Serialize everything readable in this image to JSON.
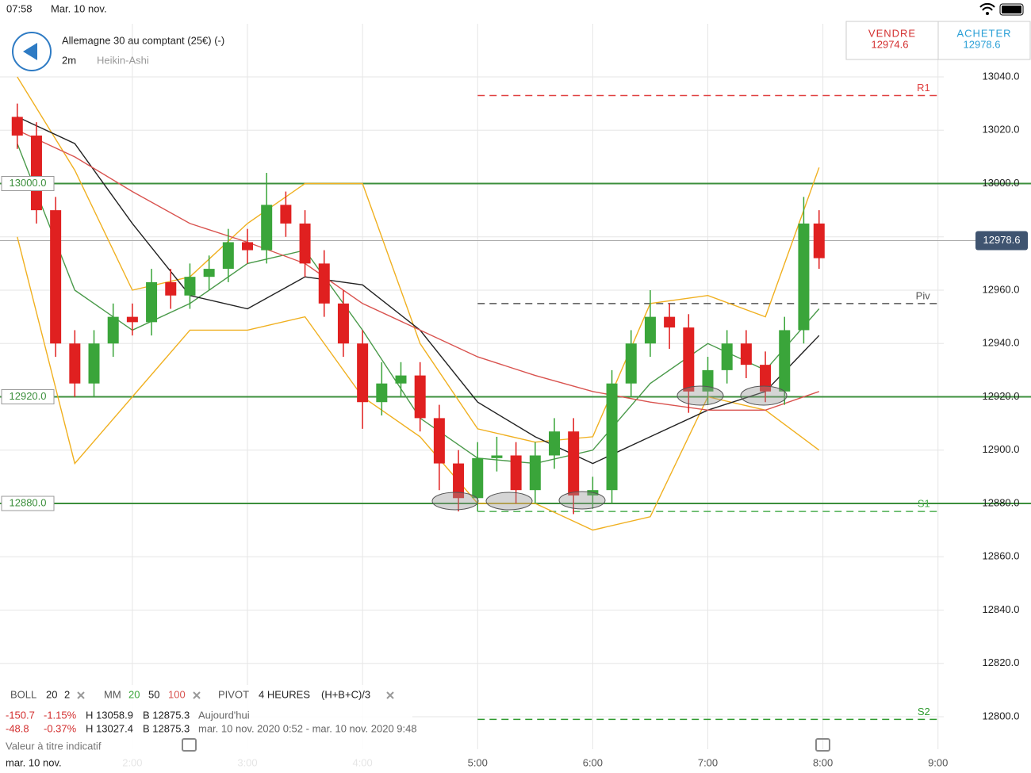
{
  "status": {
    "time": "07:58",
    "date": "Mar. 10 nov."
  },
  "header": {
    "instrument": "Allemagne 30 au comptant (25€) (-)",
    "interval": "2m",
    "style": "Heikin-Ashi"
  },
  "trade": {
    "sell_label": "VENDRE",
    "sell_price": "12974.6",
    "buy_label": "ACHETER",
    "buy_price": "12978.6"
  },
  "legend": {
    "boll": "BOLL",
    "boll_period": "20",
    "boll_dev": "2",
    "mm": "MM",
    "mm1": "20",
    "mm2": "50",
    "mm3": "100",
    "pivot": "PIVOT",
    "pivot_period": "4 HEURES",
    "pivot_formula": "(H+B+C)/3"
  },
  "stats": {
    "row1": [
      "-150.7",
      "-1.15%",
      "H 13058.9",
      "B 12875.3",
      "Aujourd'hui"
    ],
    "row2": [
      "-48.8",
      "-0.37%",
      "H 13027.4",
      "B 12875.3",
      "mar. 10 nov. 2020 0:52 - mar. 10 nov. 2020 9:48"
    ],
    "note": "Valeur à titre indicatif"
  },
  "chart_data": {
    "type": "candlestick",
    "x": [
      "1:00",
      "1:10",
      "1:20",
      "1:30",
      "1:40",
      "1:50",
      "2:00",
      "2:10",
      "2:20",
      "2:30",
      "2:40",
      "2:50",
      "3:00",
      "3:10",
      "3:20",
      "3:30",
      "3:40",
      "3:50",
      "4:00",
      "4:10",
      "4:20",
      "4:30",
      "4:40",
      "4:50",
      "5:00",
      "5:10",
      "5:20",
      "5:30",
      "5:40",
      "5:50",
      "6:00",
      "6:10",
      "6:20",
      "6:30",
      "6:40",
      "6:50",
      "7:00",
      "7:10",
      "7:20",
      "7:30",
      "7:40",
      "7:50",
      "7:58"
    ],
    "open": [
      13025,
      13018,
      12990,
      12940,
      12925,
      12940,
      12950,
      12948,
      12963,
      12958,
      12965,
      12968,
      12978,
      12975,
      12992,
      12985,
      12970,
      12955,
      12940,
      12918,
      12925,
      12928,
      12912,
      12895,
      12882,
      12897,
      12898,
      12885,
      12898,
      12907,
      12883,
      12885,
      12925,
      12940,
      12950,
      12946,
      12922,
      12930,
      12940,
      12932,
      12922,
      12945,
      12985
    ],
    "high": [
      13030,
      13023,
      12995,
      12945,
      12945,
      12955,
      12955,
      12968,
      12968,
      12970,
      12973,
      12983,
      12983,
      13004,
      12997,
      12990,
      12975,
      12960,
      12945,
      12933,
      12933,
      12933,
      12917,
      12900,
      12903,
      12905,
      12903,
      12903,
      12912,
      12912,
      12890,
      12930,
      12945,
      12960,
      12955,
      12951,
      12935,
      12945,
      12945,
      12937,
      12950,
      12995,
      12990
    ],
    "low": [
      13013,
      12985,
      12935,
      12920,
      12920,
      12935,
      12943,
      12943,
      12953,
      12953,
      12960,
      12963,
      12970,
      12970,
      12980,
      12965,
      12950,
      12935,
      12908,
      12913,
      12920,
      12907,
      12885,
      12877,
      12877,
      12892,
      12880,
      12880,
      12893,
      12876,
      12878,
      12880,
      12920,
      12935,
      12938,
      12914,
      12917,
      12925,
      12927,
      12918,
      12917,
      12940,
      12968
    ],
    "close": [
      13018,
      12990,
      12940,
      12925,
      12940,
      12950,
      12948,
      12963,
      12958,
      12965,
      12968,
      12978,
      12975,
      12992,
      12985,
      12970,
      12955,
      12940,
      12918,
      12925,
      12928,
      12912,
      12895,
      12882,
      12897,
      12898,
      12885,
      12898,
      12907,
      12883,
      12885,
      12925,
      12940,
      12950,
      12946,
      12922,
      12930,
      12940,
      12932,
      12922,
      12945,
      12985,
      12972
    ],
    "up_color": "#3aa53a",
    "down_color": "#e02020",
    "indicators": {
      "x": [
        "1:00",
        "1:30",
        "2:00",
        "2:30",
        "3:00",
        "3:30",
        "4:00",
        "4:30",
        "5:00",
        "5:30",
        "6:00",
        "6:30",
        "7:00",
        "7:30",
        "7:58"
      ],
      "series": [
        {
          "color": "#f0b020",
          "values": [
            13040,
            13005,
            12960,
            12965,
            12985,
            13000,
            13000,
            12940,
            12908,
            12903,
            12905,
            12955,
            12958,
            12950,
            13006
          ]
        },
        {
          "color": "#f0b020",
          "values": [
            12980,
            12895,
            12920,
            12945,
            12945,
            12950,
            12920,
            12905,
            12880,
            12880,
            12870,
            12875,
            12920,
            12915,
            12900
          ]
        },
        {
          "color": "#4a9a4a",
          "values": [
            13015,
            12960,
            12945,
            12955,
            12970,
            12975,
            12945,
            12912,
            12897,
            12895,
            12900,
            12925,
            12940,
            12930,
            12953
          ]
        },
        {
          "color": "#222222",
          "values": [
            13025,
            13015,
            12985,
            12958,
            12953,
            12965,
            12962,
            12945,
            12918,
            12905,
            12895,
            12905,
            12915,
            12922,
            12943
          ]
        },
        {
          "color": "#d9534f",
          "values": [
            13020,
            13010,
            12997,
            12985,
            12978,
            12970,
            12955,
            12945,
            12935,
            12928,
            12922,
            12918,
            12915,
            12915,
            12922
          ]
        }
      ]
    },
    "levels": [
      {
        "value": 13000,
        "label": "13000.0"
      },
      {
        "value": 12920,
        "label": "12920.0"
      },
      {
        "value": 12880,
        "label": "12880.0"
      }
    ],
    "pivots": [
      {
        "name": "R1",
        "value": 13033,
        "color": "#e04040"
      },
      {
        "name": "Piv",
        "value": 12955,
        "color": "#555555"
      },
      {
        "name": "S1",
        "value": 12877,
        "color": "#4caf50"
      },
      {
        "name": "S2",
        "value": 12799,
        "color": "#2e9a2e"
      }
    ],
    "last_price": {
      "value": 12978.6,
      "label": "12978.6"
    },
    "xlim": [
      "0:51",
      "9:03"
    ],
    "xticks": [
      "2:00",
      "3:00",
      "4:00",
      "5:00",
      "6:00",
      "7:00",
      "8:00",
      "9:00"
    ],
    "ylim": [
      12788,
      13060
    ],
    "yticks": [
      {
        "value": 12800,
        "label": "12800.0"
      },
      {
        "value": 12820,
        "label": "12820.0"
      },
      {
        "value": 12840,
        "label": "12840.0"
      },
      {
        "value": 12860,
        "label": "12860.0"
      },
      {
        "value": 12880,
        "label": "12880.0"
      },
      {
        "value": 12900,
        "label": "12900.0"
      },
      {
        "value": 12920,
        "label": "12920.0"
      },
      {
        "value": 12940,
        "label": "12940.0"
      },
      {
        "value": 12960,
        "label": "12960.0"
      },
      {
        "value": 12980,
        "label": "12980.0"
      },
      {
        "value": 13000,
        "label": "13000.0"
      },
      {
        "value": 13020,
        "label": "13020.0"
      },
      {
        "value": 13040,
        "label": "13040.0"
      }
    ],
    "date_label": "mar. 10 nov.",
    "grid": true
  }
}
